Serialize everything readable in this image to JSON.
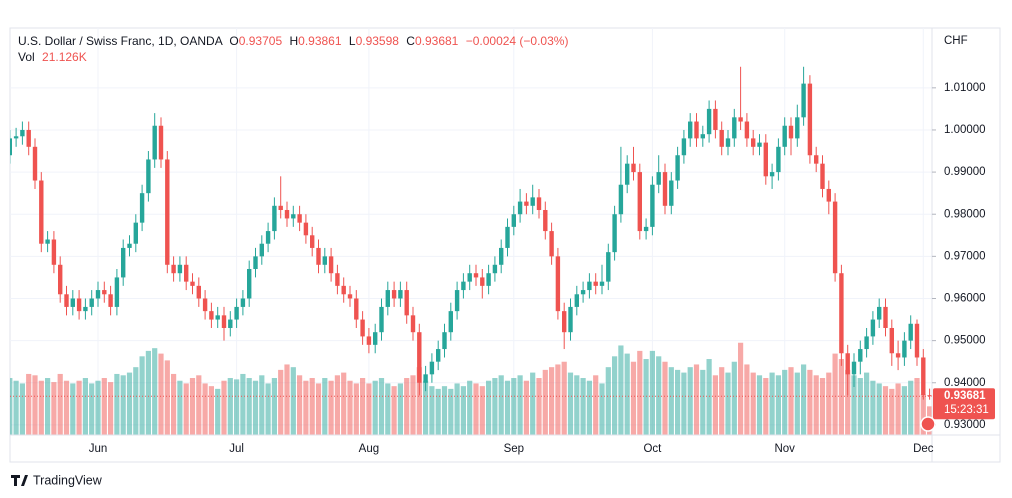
{
  "chart_data": {
    "type": "candlestick",
    "header": {
      "symbol": "U.S. Dollar / Swiss Franc, 1D, OANDA",
      "o_label": "O",
      "open": 0.93705,
      "h_label": "H",
      "high": 0.93861,
      "l_label": "L",
      "low": 0.93598,
      "c_label": "C",
      "close": 0.93681,
      "change": "−0.00024 (−0.03%)",
      "volume_label": "Vol",
      "volume": "21.126K"
    },
    "y_axis_label": "CHF",
    "countdown": "15:23:31",
    "categories": [
      null,
      null,
      null,
      null,
      null,
      null,
      null,
      null,
      null,
      null,
      null,
      null,
      null,
      null,
      "Jun",
      null,
      null,
      null,
      null,
      null,
      null,
      null,
      null,
      null,
      null,
      null,
      null,
      null,
      null,
      null,
      null,
      null,
      null,
      null,
      null,
      null,
      "Jul",
      null,
      null,
      null,
      null,
      null,
      null,
      null,
      null,
      null,
      null,
      null,
      null,
      null,
      null,
      null,
      null,
      null,
      null,
      null,
      null,
      "Aug",
      null,
      null,
      null,
      null,
      null,
      null,
      null,
      null,
      null,
      null,
      null,
      null,
      null,
      null,
      null,
      null,
      null,
      null,
      null,
      null,
      null,
      null,
      "Sep",
      null,
      null,
      null,
      null,
      null,
      null,
      null,
      null,
      null,
      null,
      null,
      null,
      null,
      null,
      null,
      null,
      null,
      null,
      null,
      null,
      null,
      "Oct",
      null,
      null,
      null,
      null,
      null,
      null,
      null,
      null,
      null,
      null,
      null,
      null,
      null,
      null,
      null,
      null,
      null,
      null,
      null,
      null,
      "Nov",
      null,
      null,
      null,
      null,
      null,
      null,
      null,
      null,
      null,
      null,
      null,
      null,
      null,
      null,
      null,
      null,
      null,
      null,
      null,
      null,
      null,
      "Dec",
      null
    ],
    "open": [
      0.994,
      0.998,
      0.9985,
      1.0,
      0.996,
      0.988,
      0.973,
      0.974,
      0.968,
      0.961,
      0.958,
      0.96,
      0.957,
      0.958,
      0.96,
      0.962,
      0.961,
      0.958,
      0.965,
      0.972,
      0.973,
      0.978,
      0.985,
      0.993,
      1.001,
      0.993,
      0.968,
      0.966,
      0.968,
      0.964,
      0.963,
      0.96,
      0.957,
      0.955,
      0.956,
      0.953,
      0.955,
      0.958,
      0.96,
      0.967,
      0.97,
      0.973,
      0.976,
      0.982,
      0.981,
      0.979,
      0.98,
      0.978,
      0.975,
      0.972,
      0.968,
      0.97,
      0.966,
      0.963,
      0.961,
      0.96,
      0.955,
      0.951,
      0.949,
      0.952,
      0.958,
      0.962,
      0.96,
      0.962,
      0.956,
      0.952,
      0.94,
      0.942,
      0.945,
      0.948,
      0.952,
      0.957,
      0.962,
      0.964,
      0.966,
      0.965,
      0.963,
      0.966,
      0.968,
      0.972,
      0.977,
      0.98,
      0.983,
      0.982,
      0.984,
      0.981,
      0.976,
      0.97,
      0.957,
      0.952,
      0.958,
      0.961,
      0.962,
      0.964,
      0.963,
      0.964,
      0.971,
      0.98,
      0.987,
      0.992,
      0.99,
      0.976,
      0.977,
      0.987,
      0.99,
      0.982,
      0.988,
      0.994,
      0.998,
      1.002,
      0.998,
      0.999,
      1.005,
      1.0,
      0.996,
      0.998,
      1.003,
      1.002,
      0.998,
      0.996,
      0.997,
      0.989,
      0.99,
      0.996,
      1.001,
      0.998,
      1.003,
      1.011,
      0.994,
      0.992,
      0.986,
      0.983,
      0.966,
      0.947,
      0.942,
      0.945,
      0.948,
      0.951,
      0.955,
      0.958,
      0.953,
      0.947,
      0.946,
      0.95,
      0.954,
      0.946,
      0.93705
    ],
    "high": [
      1.0,
      1.0005,
      1.002,
      1.002,
      0.998,
      0.99,
      0.976,
      0.976,
      0.97,
      0.963,
      0.962,
      0.962,
      0.96,
      0.962,
      0.964,
      0.964,
      0.963,
      0.967,
      0.974,
      0.975,
      0.98,
      0.987,
      0.995,
      1.004,
      1.003,
      0.995,
      0.97,
      0.97,
      0.97,
      0.966,
      0.965,
      0.962,
      0.959,
      0.958,
      0.958,
      0.957,
      0.96,
      0.962,
      0.969,
      0.972,
      0.975,
      0.978,
      0.984,
      0.989,
      0.983,
      0.982,
      0.982,
      0.98,
      0.977,
      0.974,
      0.972,
      0.972,
      0.968,
      0.965,
      0.963,
      0.962,
      0.957,
      0.953,
      0.954,
      0.96,
      0.964,
      0.964,
      0.964,
      0.964,
      0.958,
      0.954,
      0.944,
      0.947,
      0.95,
      0.954,
      0.959,
      0.964,
      0.966,
      0.968,
      0.968,
      0.967,
      0.968,
      0.97,
      0.974,
      0.979,
      0.982,
      0.986,
      0.985,
      0.987,
      0.986,
      0.983,
      0.978,
      0.972,
      0.959,
      0.96,
      0.963,
      0.964,
      0.966,
      0.966,
      0.968,
      0.973,
      0.982,
      0.996,
      0.994,
      0.996,
      0.992,
      0.979,
      0.989,
      0.994,
      0.992,
      0.99,
      0.996,
      1.0,
      1.004,
      1.004,
      1.001,
      1.007,
      1.007,
      1.002,
      1.0,
      1.005,
      1.015,
      1.004,
      1.0,
      0.999,
      0.999,
      0.992,
      0.998,
      1.003,
      1.003,
      1.006,
      1.015,
      1.013,
      0.996,
      0.994,
      0.988,
      0.985,
      0.968,
      0.949,
      0.947,
      0.95,
      0.953,
      0.957,
      0.96,
      0.96,
      0.955,
      0.95,
      0.952,
      0.956,
      0.955,
      0.948,
      0.93861
    ],
    "low": [
      0.992,
      0.996,
      0.9965,
      0.994,
      0.986,
      0.971,
      0.971,
      0.966,
      0.959,
      0.956,
      0.956,
      0.955,
      0.955,
      0.956,
      0.958,
      0.959,
      0.956,
      0.956,
      0.963,
      0.97,
      0.971,
      0.976,
      0.983,
      0.991,
      0.991,
      0.966,
      0.964,
      0.964,
      0.962,
      0.961,
      0.958,
      0.955,
      0.953,
      0.953,
      0.95,
      0.951,
      0.953,
      0.956,
      0.958,
      0.965,
      0.968,
      0.971,
      0.974,
      0.979,
      0.977,
      0.977,
      0.976,
      0.973,
      0.97,
      0.966,
      0.966,
      0.964,
      0.961,
      0.959,
      0.958,
      0.953,
      0.949,
      0.947,
      0.947,
      0.95,
      0.956,
      0.958,
      0.958,
      0.954,
      0.95,
      0.937,
      0.938,
      0.94,
      0.943,
      0.946,
      0.95,
      0.955,
      0.96,
      0.962,
      0.963,
      0.96,
      0.961,
      0.964,
      0.966,
      0.97,
      0.975,
      0.978,
      0.98,
      0.98,
      0.979,
      0.974,
      0.968,
      0.955,
      0.948,
      0.95,
      0.956,
      0.959,
      0.96,
      0.961,
      0.961,
      0.962,
      0.969,
      0.978,
      0.985,
      0.988,
      0.974,
      0.974,
      0.975,
      0.985,
      0.98,
      0.98,
      0.986,
      0.992,
      0.996,
      0.996,
      0.996,
      0.997,
      0.998,
      0.994,
      0.994,
      0.996,
      1.0,
      0.996,
      0.994,
      0.994,
      0.987,
      0.986,
      0.988,
      0.994,
      0.994,
      0.996,
      1.001,
      0.992,
      0.99,
      0.984,
      0.98,
      0.964,
      0.944,
      0.937,
      0.939,
      0.942,
      0.946,
      0.949,
      0.953,
      0.951,
      0.944,
      0.943,
      0.944,
      0.948,
      0.944,
      0.936,
      0.93598
    ],
    "close": [
      0.998,
      0.9985,
      1.0,
      0.996,
      0.988,
      0.973,
      0.974,
      0.968,
      0.961,
      0.958,
      0.96,
      0.957,
      0.958,
      0.96,
      0.962,
      0.961,
      0.958,
      0.965,
      0.972,
      0.973,
      0.978,
      0.985,
      0.993,
      1.001,
      0.993,
      0.968,
      0.966,
      0.968,
      0.964,
      0.963,
      0.96,
      0.957,
      0.955,
      0.956,
      0.953,
      0.955,
      0.958,
      0.96,
      0.967,
      0.97,
      0.973,
      0.976,
      0.982,
      0.981,
      0.979,
      0.98,
      0.978,
      0.975,
      0.972,
      0.968,
      0.97,
      0.966,
      0.963,
      0.961,
      0.96,
      0.955,
      0.951,
      0.949,
      0.952,
      0.958,
      0.962,
      0.96,
      0.962,
      0.956,
      0.952,
      0.94,
      0.942,
      0.945,
      0.948,
      0.952,
      0.957,
      0.962,
      0.964,
      0.966,
      0.965,
      0.963,
      0.966,
      0.968,
      0.972,
      0.977,
      0.98,
      0.983,
      0.982,
      0.984,
      0.981,
      0.976,
      0.97,
      0.957,
      0.952,
      0.958,
      0.961,
      0.962,
      0.964,
      0.963,
      0.964,
      0.971,
      0.98,
      0.987,
      0.992,
      0.99,
      0.976,
      0.977,
      0.987,
      0.99,
      0.982,
      0.988,
      0.994,
      0.998,
      1.002,
      0.998,
      0.999,
      1.005,
      1.0,
      0.996,
      0.998,
      1.003,
      1.002,
      0.998,
      0.996,
      0.997,
      0.989,
      0.99,
      0.996,
      1.001,
      0.998,
      1.003,
      1.011,
      0.994,
      0.992,
      0.986,
      0.983,
      0.966,
      0.947,
      0.942,
      0.945,
      0.948,
      0.951,
      0.955,
      0.958,
      0.953,
      0.947,
      0.946,
      0.95,
      0.954,
      0.946,
      0.9371,
      0.93681
    ],
    "volume": [
      42,
      40,
      38,
      45,
      44,
      40,
      42,
      39,
      45,
      40,
      38,
      40,
      42,
      38,
      40,
      42,
      39,
      45,
      44,
      46,
      50,
      58,
      62,
      64,
      60,
      55,
      45,
      40,
      38,
      42,
      44,
      38,
      36,
      34,
      40,
      42,
      41,
      45,
      42,
      40,
      44,
      38,
      42,
      48,
      52,
      50,
      44,
      40,
      42,
      38,
      42,
      40,
      44,
      46,
      40,
      38,
      42,
      38,
      40,
      42,
      38,
      36,
      38,
      42,
      44,
      50,
      40,
      36,
      34,
      36,
      34,
      38,
      36,
      40,
      38,
      36,
      40,
      42,
      44,
      40,
      42,
      44,
      40,
      46,
      42,
      48,
      50,
      52,
      54,
      46,
      44,
      42,
      40,
      44,
      38,
      50,
      58,
      66,
      60,
      54,
      62,
      56,
      62,
      58,
      54,
      50,
      48,
      46,
      50,
      52,
      48,
      56,
      44,
      50,
      46,
      54,
      68,
      52,
      46,
      44,
      42,
      46,
      44,
      48,
      50,
      46,
      52,
      48,
      44,
      42,
      46,
      60,
      56,
      48,
      44,
      42,
      46,
      40,
      38,
      36,
      34,
      38,
      36,
      40,
      42,
      30,
      21.126
    ],
    "ylim": [
      0.9276,
      1.0242
    ],
    "yticks": [
      {
        "value": 0.93,
        "label": "0.93000"
      },
      {
        "value": 0.94,
        "label": "0.94000"
      },
      {
        "value": 0.95,
        "label": "0.95000"
      },
      {
        "value": 0.96,
        "label": "0.96000"
      },
      {
        "value": 0.97,
        "label": "0.97000"
      },
      {
        "value": 0.98,
        "label": "0.98000"
      },
      {
        "value": 0.99,
        "label": "0.99000"
      },
      {
        "value": 1.0,
        "label": "1.00000"
      },
      {
        "value": 1.01,
        "label": "1.01000"
      }
    ],
    "volume_ylim": [
      0,
      300
    ],
    "up_color": "#26a69a",
    "down_color": "#ef5350",
    "grid": true
  },
  "brand": "TradingView"
}
